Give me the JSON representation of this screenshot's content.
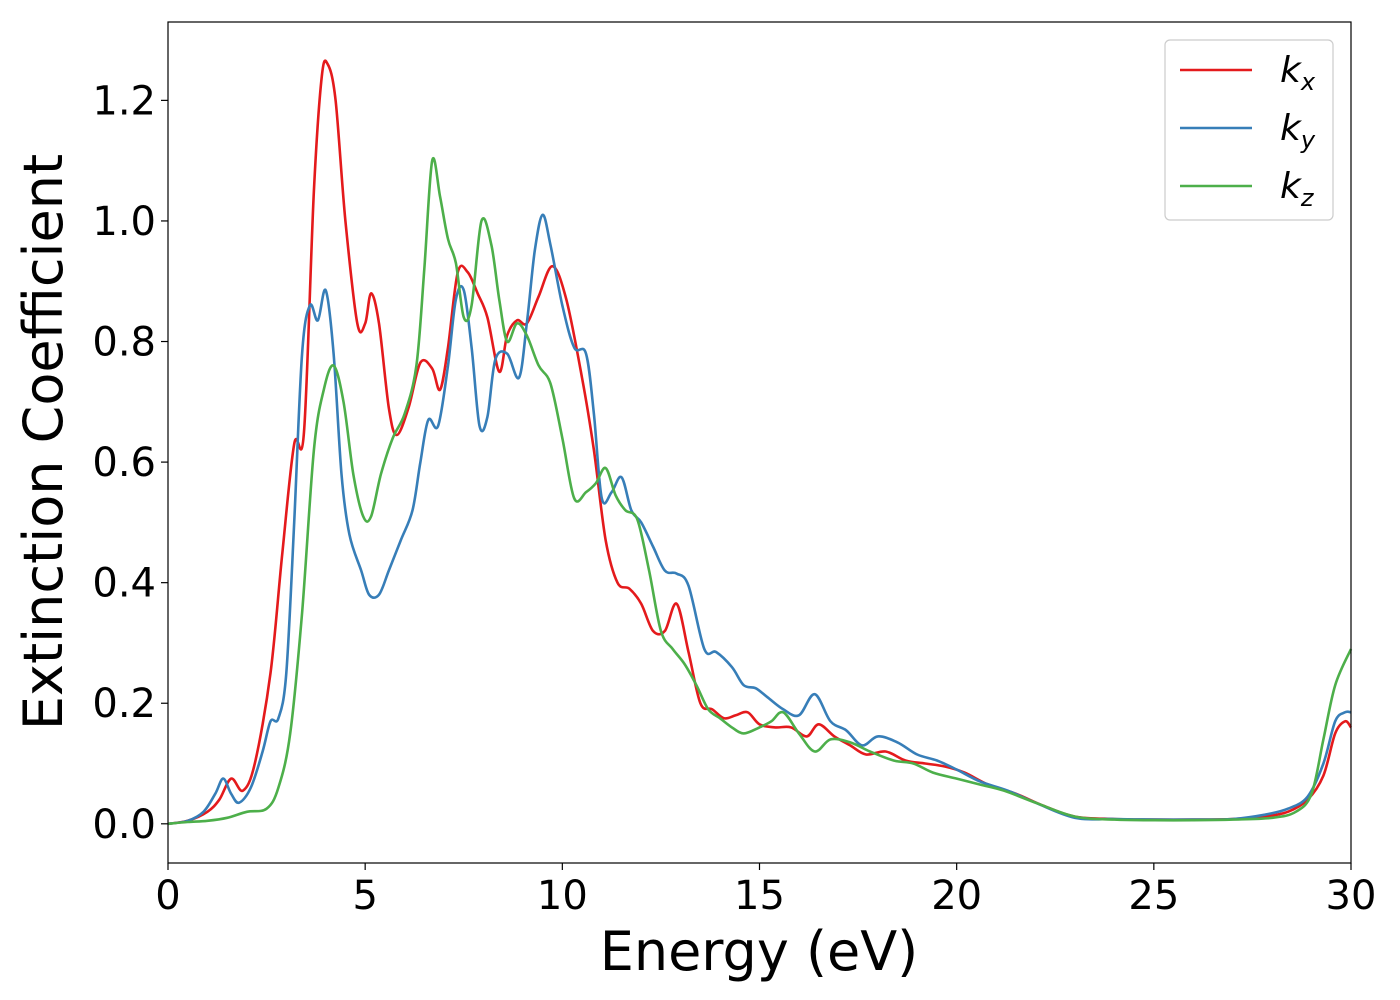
{
  "chart_data": {
    "type": "line",
    "xlabel": "Energy (eV)",
    "ylabel": "Extinction Coefficient",
    "xlim": [
      0,
      30
    ],
    "ylim": [
      -0.065,
      1.33
    ],
    "xticks": [
      0,
      5,
      10,
      15,
      20,
      25,
      30
    ],
    "yticks": [
      0.0,
      0.2,
      0.4,
      0.6,
      0.8,
      1.0,
      1.2
    ],
    "xtick_labels": [
      "0",
      "5",
      "10",
      "15",
      "20",
      "25",
      "30"
    ],
    "ytick_labels": [
      "0.0",
      "0.2",
      "0.4",
      "0.6",
      "0.8",
      "1.0",
      "1.2"
    ],
    "grid": false,
    "legend_position": "top-right",
    "series": [
      {
        "name": "k_x",
        "label_base": "k",
        "label_sub": "x",
        "color": "#e41a1c",
        "x": [
          0,
          0.5,
          1.0,
          1.3,
          1.6,
          1.9,
          2.2,
          2.6,
          2.9,
          3.2,
          3.45,
          3.7,
          3.9,
          4.05,
          4.25,
          4.5,
          4.8,
          5.0,
          5.15,
          5.35,
          5.6,
          5.8,
          6.1,
          6.4,
          6.7,
          6.9,
          7.1,
          7.35,
          7.6,
          7.85,
          8.1,
          8.4,
          8.6,
          8.85,
          9.1,
          9.4,
          9.75,
          10.1,
          10.5,
          10.8,
          11.1,
          11.4,
          11.7,
          12.0,
          12.3,
          12.6,
          12.9,
          13.2,
          13.5,
          13.8,
          14.1,
          14.4,
          14.7,
          15.0,
          15.4,
          15.8,
          16.2,
          16.5,
          16.9,
          17.3,
          17.7,
          18.2,
          18.7,
          19.2,
          19.7,
          20.2,
          20.8,
          21.5,
          22.2,
          23.0,
          24.0,
          25.0,
          26.0,
          27.0,
          27.8,
          28.4,
          28.9,
          29.3,
          29.6,
          29.85,
          30.0
        ],
        "y": [
          0.0,
          0.005,
          0.02,
          0.04,
          0.075,
          0.055,
          0.1,
          0.25,
          0.45,
          0.63,
          0.65,
          1.05,
          1.24,
          1.26,
          1.2,
          1.0,
          0.83,
          0.83,
          0.88,
          0.83,
          0.69,
          0.645,
          0.69,
          0.765,
          0.755,
          0.72,
          0.79,
          0.915,
          0.915,
          0.88,
          0.84,
          0.75,
          0.81,
          0.835,
          0.83,
          0.875,
          0.925,
          0.87,
          0.74,
          0.62,
          0.47,
          0.4,
          0.39,
          0.365,
          0.32,
          0.32,
          0.365,
          0.285,
          0.2,
          0.19,
          0.175,
          0.18,
          0.185,
          0.165,
          0.16,
          0.16,
          0.145,
          0.165,
          0.145,
          0.13,
          0.115,
          0.12,
          0.105,
          0.1,
          0.095,
          0.085,
          0.065,
          0.05,
          0.03,
          0.012,
          0.008,
          0.007,
          0.007,
          0.008,
          0.012,
          0.02,
          0.04,
          0.08,
          0.15,
          0.17,
          0.16
        ]
      },
      {
        "name": "k_y",
        "label_base": "k",
        "label_sub": "y",
        "color": "#377eb8",
        "x": [
          0,
          0.5,
          0.9,
          1.2,
          1.4,
          1.6,
          1.8,
          2.1,
          2.4,
          2.6,
          2.8,
          3.0,
          3.2,
          3.4,
          3.6,
          3.8,
          4.0,
          4.2,
          4.4,
          4.6,
          4.9,
          5.1,
          5.35,
          5.6,
          5.9,
          6.2,
          6.4,
          6.6,
          6.85,
          7.1,
          7.3,
          7.5,
          7.7,
          7.9,
          8.1,
          8.3,
          8.6,
          8.9,
          9.1,
          9.3,
          9.5,
          9.7,
          10.0,
          10.3,
          10.6,
          10.8,
          11.0,
          11.25,
          11.5,
          11.75,
          12.0,
          12.3,
          12.6,
          12.9,
          13.2,
          13.6,
          13.9,
          14.3,
          14.6,
          14.9,
          15.2,
          15.6,
          16.0,
          16.4,
          16.8,
          17.2,
          17.6,
          18.0,
          18.5,
          19.0,
          19.5,
          20.0,
          20.6,
          21.3,
          22.0,
          23.0,
          24.0,
          25.0,
          26.0,
          27.0,
          27.8,
          28.4,
          28.9,
          29.3,
          29.6,
          29.85,
          30.0
        ],
        "y": [
          0.0,
          0.005,
          0.02,
          0.05,
          0.075,
          0.05,
          0.035,
          0.06,
          0.12,
          0.17,
          0.175,
          0.25,
          0.5,
          0.78,
          0.86,
          0.835,
          0.885,
          0.78,
          0.58,
          0.48,
          0.42,
          0.38,
          0.38,
          0.42,
          0.47,
          0.52,
          0.6,
          0.67,
          0.66,
          0.76,
          0.87,
          0.885,
          0.79,
          0.66,
          0.675,
          0.77,
          0.78,
          0.74,
          0.83,
          0.95,
          1.01,
          0.96,
          0.86,
          0.79,
          0.78,
          0.68,
          0.54,
          0.55,
          0.575,
          0.52,
          0.5,
          0.46,
          0.42,
          0.415,
          0.395,
          0.29,
          0.285,
          0.26,
          0.23,
          0.225,
          0.21,
          0.19,
          0.18,
          0.215,
          0.17,
          0.155,
          0.13,
          0.145,
          0.135,
          0.115,
          0.105,
          0.09,
          0.07,
          0.055,
          0.035,
          0.01,
          0.008,
          0.007,
          0.007,
          0.008,
          0.015,
          0.025,
          0.045,
          0.1,
          0.17,
          0.185,
          0.185
        ]
      },
      {
        "name": "k_z",
        "label_base": "k",
        "label_sub": "z",
        "color": "#4daf4a",
        "x": [
          0,
          0.5,
          1.0,
          1.5,
          2.0,
          2.5,
          2.8,
          3.1,
          3.4,
          3.7,
          3.95,
          4.2,
          4.45,
          4.7,
          4.95,
          5.15,
          5.4,
          5.7,
          6.0,
          6.3,
          6.5,
          6.7,
          6.9,
          7.1,
          7.3,
          7.5,
          7.7,
          7.95,
          8.2,
          8.4,
          8.6,
          8.85,
          9.1,
          9.4,
          9.7,
          10.0,
          10.3,
          10.6,
          10.85,
          11.1,
          11.35,
          11.6,
          11.9,
          12.2,
          12.5,
          12.8,
          13.1,
          13.4,
          13.7,
          14.0,
          14.3,
          14.6,
          15.0,
          15.3,
          15.6,
          16.0,
          16.4,
          16.8,
          17.3,
          17.8,
          18.4,
          18.9,
          19.4,
          20.0,
          20.6,
          21.2,
          22.0,
          23.0,
          24.0,
          25.0,
          26.0,
          27.0,
          28.0,
          28.6,
          29.0,
          29.3,
          29.6,
          30.0
        ],
        "y": [
          0.0,
          0.003,
          0.005,
          0.01,
          0.02,
          0.025,
          0.06,
          0.15,
          0.35,
          0.62,
          0.72,
          0.76,
          0.7,
          0.58,
          0.51,
          0.51,
          0.58,
          0.64,
          0.68,
          0.76,
          0.92,
          1.1,
          1.04,
          0.97,
          0.93,
          0.84,
          0.86,
          1.0,
          0.96,
          0.87,
          0.8,
          0.83,
          0.81,
          0.76,
          0.73,
          0.64,
          0.54,
          0.55,
          0.565,
          0.59,
          0.545,
          0.52,
          0.505,
          0.42,
          0.32,
          0.29,
          0.265,
          0.23,
          0.19,
          0.175,
          0.16,
          0.15,
          0.16,
          0.17,
          0.185,
          0.15,
          0.12,
          0.14,
          0.135,
          0.12,
          0.105,
          0.1,
          0.085,
          0.075,
          0.065,
          0.055,
          0.035,
          0.012,
          0.007,
          0.006,
          0.006,
          0.007,
          0.01,
          0.02,
          0.05,
          0.14,
          0.23,
          0.29
        ]
      }
    ]
  }
}
